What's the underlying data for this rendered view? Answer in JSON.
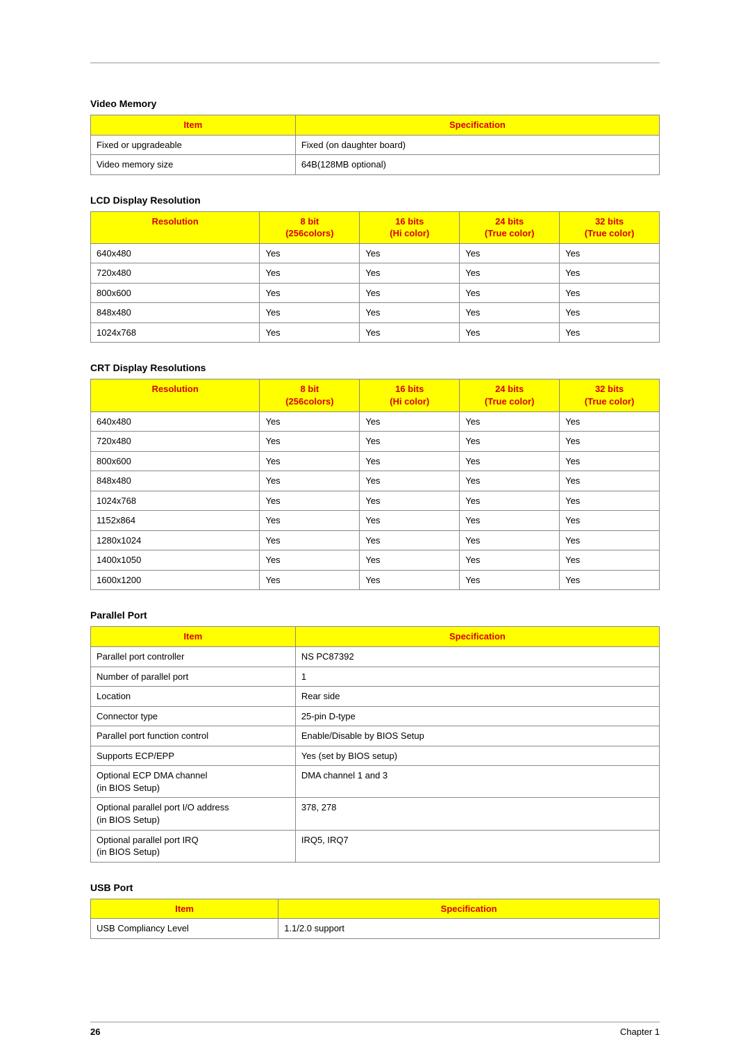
{
  "sections": {
    "videoMemory": {
      "title": "Video Memory",
      "headers": [
        "Item",
        "Specification"
      ],
      "rows": [
        [
          "Fixed or upgradeable",
          "Fixed (on daughter board)"
        ],
        [
          "Video memory size",
          "64B(128MB optional)"
        ]
      ]
    },
    "lcd": {
      "title": "LCD Display Resolution",
      "headers": [
        "Resolution",
        "8 bit\n(256colors)",
        "16 bits\n(Hi color)",
        "24 bits\n(True color)",
        "32 bits\n(True color)"
      ],
      "rows": [
        [
          "640x480",
          "Yes",
          "Yes",
          "Yes",
          "Yes"
        ],
        [
          "720x480",
          "Yes",
          "Yes",
          "Yes",
          "Yes"
        ],
        [
          "800x600",
          "Yes",
          "Yes",
          "Yes",
          "Yes"
        ],
        [
          "848x480",
          "Yes",
          "Yes",
          "Yes",
          "Yes"
        ],
        [
          "1024x768",
          "Yes",
          "Yes",
          "Yes",
          "Yes"
        ]
      ]
    },
    "crt": {
      "title": "CRT Display Resolutions",
      "headers": [
        "Resolution",
        "8 bit\n(256colors)",
        "16 bits\n(Hi color)",
        "24 bits\n(True color)",
        "32 bits\n(True color)"
      ],
      "rows": [
        [
          "640x480",
          "Yes",
          "Yes",
          "Yes",
          "Yes"
        ],
        [
          "720x480",
          "Yes",
          "Yes",
          "Yes",
          "Yes"
        ],
        [
          "800x600",
          "Yes",
          "Yes",
          "Yes",
          "Yes"
        ],
        [
          "848x480",
          "Yes",
          "Yes",
          "Yes",
          "Yes"
        ],
        [
          "1024x768",
          "Yes",
          "Yes",
          "Yes",
          "Yes"
        ],
        [
          "1152x864",
          "Yes",
          "Yes",
          "Yes",
          "Yes"
        ],
        [
          "1280x1024",
          "Yes",
          "Yes",
          "Yes",
          "Yes"
        ],
        [
          "1400x1050",
          "Yes",
          "Yes",
          "Yes",
          "Yes"
        ],
        [
          "1600x1200",
          "Yes",
          "Yes",
          "Yes",
          "Yes"
        ]
      ]
    },
    "parallel": {
      "title": "Parallel Port",
      "headers": [
        "Item",
        "Specification"
      ],
      "rows": [
        [
          "Parallel port controller",
          "NS PC87392"
        ],
        [
          "Number of parallel port",
          "1"
        ],
        [
          "Location",
          "Rear side"
        ],
        [
          "Connector type",
          "25-pin D-type"
        ],
        [
          "Parallel port function control",
          "Enable/Disable by BIOS Setup"
        ],
        [
          "Supports ECP/EPP",
          "Yes (set by BIOS setup)"
        ],
        [
          "Optional ECP DMA channel\n(in BIOS Setup)",
          "DMA channel 1 and 3"
        ],
        [
          "Optional parallel port I/O address\n(in BIOS Setup)",
          "378, 278"
        ],
        [
          "Optional parallel port IRQ\n(in BIOS Setup)",
          "IRQ5, IRQ7"
        ]
      ]
    },
    "usb": {
      "title": "USB Port",
      "headers": [
        "Item",
        "Specification"
      ],
      "rows": [
        [
          "USB Compliancy Level",
          "1.1/2.0 support"
        ]
      ]
    }
  },
  "footer": {
    "page": "26",
    "chapter": "Chapter 1"
  },
  "style": {
    "header_bg": "#ffff00",
    "header_fg": "#d80000",
    "border_color": "#888888",
    "font_size_body": 13,
    "font_size_title": 14
  }
}
